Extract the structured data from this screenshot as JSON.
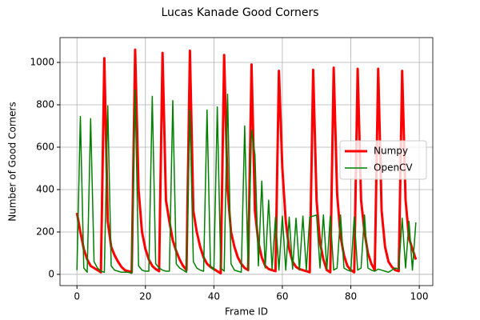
{
  "chart_data": {
    "type": "line",
    "title": "Lucas Kanade Good Corners",
    "x_label": "Frame ID",
    "y_label": "Number of Good Corners",
    "x": [
      0,
      1,
      2,
      3,
      4,
      5,
      6,
      7,
      8,
      9,
      10,
      11,
      12,
      13,
      14,
      15,
      16,
      17,
      18,
      19,
      20,
      21,
      22,
      23,
      24,
      25,
      26,
      27,
      28,
      29,
      30,
      31,
      32,
      33,
      34,
      35,
      36,
      37,
      38,
      39,
      40,
      41,
      42,
      43,
      44,
      45,
      46,
      47,
      48,
      49,
      50,
      51,
      52,
      53,
      54,
      55,
      56,
      57,
      58,
      59,
      60,
      61,
      62,
      63,
      64,
      65,
      66,
      67,
      68,
      69,
      70,
      71,
      72,
      73,
      74,
      75,
      76,
      77,
      78,
      79,
      80,
      81,
      82,
      83,
      84,
      85,
      86,
      87,
      88,
      89,
      90,
      91,
      92,
      93,
      94,
      95,
      96,
      97,
      98,
      99
    ],
    "series": [
      {
        "name": "Numpy",
        "color": "#ff0000",
        "width": 3,
        "values": [
          290,
          200,
          120,
          70,
          40,
          30,
          20,
          10,
          1020,
          250,
          130,
          90,
          60,
          35,
          20,
          15,
          10,
          1060,
          400,
          200,
          120,
          70,
          40,
          25,
          15,
          1045,
          350,
          250,
          160,
          110,
          70,
          40,
          20,
          1055,
          300,
          200,
          130,
          80,
          50,
          35,
          25,
          15,
          5,
          1035,
          400,
          200,
          130,
          80,
          50,
          30,
          20,
          990,
          300,
          150,
          80,
          40,
          25,
          20,
          15,
          960,
          500,
          250,
          120,
          60,
          35,
          25,
          20,
          15,
          10,
          965,
          350,
          150,
          70,
          20,
          10,
          975,
          380,
          180,
          90,
          40,
          20,
          10,
          970,
          350,
          200,
          100,
          50,
          20,
          970,
          300,
          130,
          60,
          35,
          20,
          15,
          960,
          350,
          170,
          120,
          70
        ]
      },
      {
        "name": "OpenCV",
        "color": "#008000",
        "width": 1.5,
        "values": [
          20,
          745,
          30,
          10,
          735,
          60,
          30,
          15,
          10,
          795,
          40,
          20,
          15,
          10,
          10,
          10,
          5,
          870,
          40,
          20,
          15,
          15,
          840,
          50,
          30,
          20,
          15,
          15,
          820,
          50,
          30,
          20,
          10,
          775,
          60,
          30,
          20,
          15,
          775,
          40,
          20,
          790,
          30,
          15,
          850,
          50,
          20,
          15,
          10,
          700,
          20,
          680,
          565,
          40,
          440,
          30,
          350,
          25,
          270,
          20,
          275,
          20,
          270,
          25,
          265,
          20,
          275,
          20,
          270,
          275,
          280,
          30,
          280,
          25,
          275,
          20,
          30,
          280,
          30,
          20,
          15,
          270,
          20,
          30,
          280,
          30,
          20,
          15,
          25,
          20,
          15,
          10,
          20,
          30,
          25,
          265,
          30,
          250,
          20,
          245
        ]
      }
    ],
    "xlim": [
      -4.95,
      103.95
    ],
    "ylim": [
      -53,
      1117
    ],
    "xticks": [
      0,
      20,
      40,
      60,
      80,
      100
    ],
    "yticks": [
      0,
      200,
      400,
      600,
      800,
      1000
    ],
    "grid": true,
    "legend": "center right"
  }
}
